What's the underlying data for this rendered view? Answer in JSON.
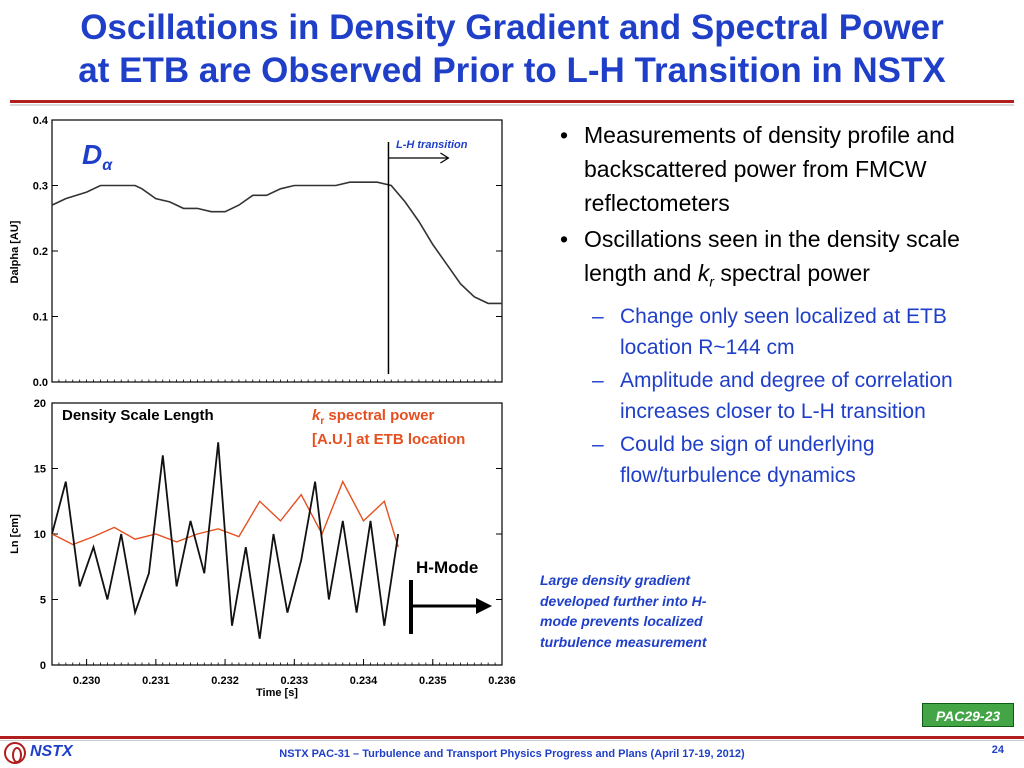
{
  "title": {
    "line1": "Oscillations in Density Gradient and Spectral Power",
    "line2": "at ETB are Observed Prior to L-H Transition in NSTX"
  },
  "chart_data": [
    {
      "type": "line",
      "title": "",
      "plot_label_main": "D",
      "plot_label_sub": "α",
      "ylabel": "Dalpha [AU]",
      "xlabel": "",
      "ylim": [
        0.0,
        0.4
      ],
      "xlim": [
        0.2295,
        0.236
      ],
      "yticks": [
        "0.0",
        "0.1",
        "0.2",
        "0.3",
        "0.4"
      ],
      "annotation": "L-H transition",
      "transition_x": 0.23436,
      "series": [
        {
          "x": [
            0.2295,
            0.2297,
            0.23,
            0.2302,
            0.2304,
            0.2306,
            0.2307,
            0.2308,
            0.231,
            0.2312,
            0.2314,
            0.2316,
            0.2318,
            0.232,
            0.2322,
            0.2324,
            0.2326,
            0.2328,
            0.233,
            0.2332,
            0.2334,
            0.2336,
            0.2338,
            0.234,
            0.2342,
            0.2344,
            0.2346,
            0.2348,
            0.235,
            0.2352,
            0.2354,
            0.2356,
            0.2358,
            0.236
          ],
          "values": [
            0.27,
            0.28,
            0.29,
            0.3,
            0.3,
            0.3,
            0.3,
            0.295,
            0.28,
            0.275,
            0.265,
            0.265,
            0.26,
            0.26,
            0.27,
            0.285,
            0.285,
            0.295,
            0.3,
            0.3,
            0.3,
            0.3,
            0.305,
            0.305,
            0.305,
            0.3,
            0.275,
            0.245,
            0.21,
            0.18,
            0.15,
            0.13,
            0.12,
            0.12
          ]
        }
      ]
    },
    {
      "type": "line",
      "title": "",
      "xlabel": "Time [s]",
      "ylabel": "Ln [cm]",
      "xlim": [
        0.2295,
        0.236
      ],
      "ylim": [
        0,
        20
      ],
      "xticks": [
        "0.230",
        "0.231",
        "0.232",
        "0.233",
        "0.234",
        "0.235",
        "0.236"
      ],
      "yticks": [
        "0",
        "5",
        "10",
        "15",
        "20"
      ],
      "legend_black": "Density Scale Length",
      "legend_red_prefix": "k",
      "legend_red_sub": "r",
      "legend_red_rest": " spectral power",
      "legend_red_line2": "[A.U.] at ETB location",
      "hmode_label": "H-Mode",
      "series": [
        {
          "name": "Density Scale Length",
          "color": "#111111",
          "x": [
            0.2295,
            0.2297,
            0.2299,
            0.2301,
            0.2303,
            0.2305,
            0.2307,
            0.2309,
            0.2311,
            0.2313,
            0.2315,
            0.2317,
            0.2319,
            0.2321,
            0.2323,
            0.2325,
            0.2327,
            0.2329,
            0.2331,
            0.2333,
            0.2335,
            0.2337,
            0.2339,
            0.2341,
            0.2343,
            0.2345
          ],
          "values": [
            10,
            14,
            6,
            9,
            5,
            10,
            4,
            7,
            16,
            6,
            11,
            7,
            17,
            3,
            9,
            2,
            10,
            4,
            8,
            14,
            5,
            11,
            4,
            11,
            3,
            10
          ]
        },
        {
          "name": "kr spectral power",
          "color": "#e55020",
          "x": [
            0.2295,
            0.2298,
            0.2301,
            0.2304,
            0.2307,
            0.231,
            0.2313,
            0.2316,
            0.2319,
            0.2322,
            0.2325,
            0.2328,
            0.2331,
            0.2334,
            0.2337,
            0.234,
            0.2343,
            0.2345
          ],
          "values": [
            10,
            9.2,
            9.8,
            10.5,
            9.6,
            10,
            9.4,
            10,
            10.4,
            9.8,
            12.5,
            11,
            13,
            10,
            14,
            11,
            12.5,
            9
          ]
        }
      ]
    }
  ],
  "bullets": [
    {
      "level": 1,
      "text": "Measurements of density profile and backscattered power from FMCW reflectometers"
    },
    {
      "level": 1,
      "text_before": "Oscillations seen in the density scale length and ",
      "italic": "k",
      "sub": "r",
      "text_after": " spectral power"
    },
    {
      "level": 2,
      "text": "Change only seen localized at ETB location R~144 cm"
    },
    {
      "level": 2,
      "text": "Amplitude and degree of correlation increases closer to L-H transition"
    },
    {
      "level": 2,
      "text": "Could be sign of underlying flow/turbulence dynamics"
    }
  ],
  "side_note": "Large density gradient developed further into H-mode prevents  localized turbulence measurement",
  "badge": "PAC29-23",
  "footer": {
    "logo_text": "NSTX",
    "text": "NSTX PAC-31 – Turbulence and Transport Physics Progress and Plans (April 17-19, 2012)",
    "page_number": "24"
  },
  "colors": {
    "title_blue": "#1f3fc8",
    "rule_red": "#b01e1e",
    "badge_green": "#44a547",
    "series_red": "#e55020"
  }
}
